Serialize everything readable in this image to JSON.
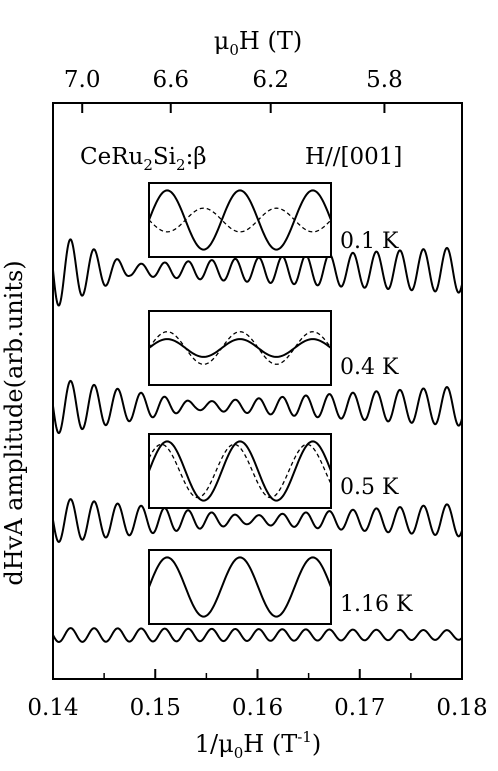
{
  "chart_data": {
    "type": "line",
    "title": "",
    "xlabel": "1/μ₀H (T⁻¹)",
    "xlabel_parts": {
      "pre": "1/μ",
      "sub": "0",
      "mid": "H (T",
      "sup": "-1",
      "post": ")"
    },
    "ylabel": "dHvA amplitude(arb.units)",
    "top_xlabel": "μ₀H (T)",
    "top_xlabel_parts": {
      "pre": "μ",
      "sub": "0",
      "post": "H (T)"
    },
    "xlim": [
      0.14,
      0.18
    ],
    "xticks": [
      "0.14",
      "0.15",
      "0.16",
      "0.17",
      "0.18"
    ],
    "top_ticks": [
      {
        "label": "7.0",
        "field": 7.0
      },
      {
        "label": "6.6",
        "field": 6.6
      },
      {
        "label": "6.2",
        "field": 6.2
      },
      {
        "label": "5.8",
        "field": 5.8
      }
    ],
    "sample_label": {
      "pre": "CeRu",
      "sub1": "2",
      "mid": "Si",
      "sub2": "2",
      "post": ":β"
    },
    "field_direction": "H//[001]",
    "grid": false,
    "series": [
      {
        "name": "0.1 K",
        "period": 0.0023,
        "beat_node_x": 0.1475,
        "envelope": [
          [
            0.14,
            1.0
          ],
          [
            0.1475,
            0.15
          ],
          [
            0.18,
            0.6
          ]
        ],
        "inset": {
          "solid_amp": 1.0,
          "dashed_amp": 0.4,
          "dashed_phase": 3.14
        }
      },
      {
        "name": "0.4 K",
        "period": 0.0023,
        "beat_node_x": 0.154,
        "envelope": [
          [
            0.14,
            0.85
          ],
          [
            0.154,
            0.12
          ],
          [
            0.18,
            0.6
          ]
        ],
        "inset": {
          "solid_amp": 0.3,
          "dashed_amp": 0.55,
          "dashed_phase": 0.0
        }
      },
      {
        "name": "0.5 K",
        "period": 0.0023,
        "beat_node_x": 0.159,
        "envelope": [
          [
            0.14,
            0.75
          ],
          [
            0.159,
            0.14
          ],
          [
            0.18,
            0.55
          ]
        ],
        "inset": {
          "solid_amp": 1.0,
          "dashed_amp": 0.9,
          "dashed_phase": 0.5
        }
      },
      {
        "name": "1.16 K",
        "period": 0.0023,
        "envelope": [
          [
            0.14,
            0.25
          ],
          [
            0.18,
            0.17
          ]
        ],
        "inset": {
          "solid_amp": 1.0,
          "dashed_amp": 0,
          "dashed_phase": 0
        }
      }
    ]
  }
}
